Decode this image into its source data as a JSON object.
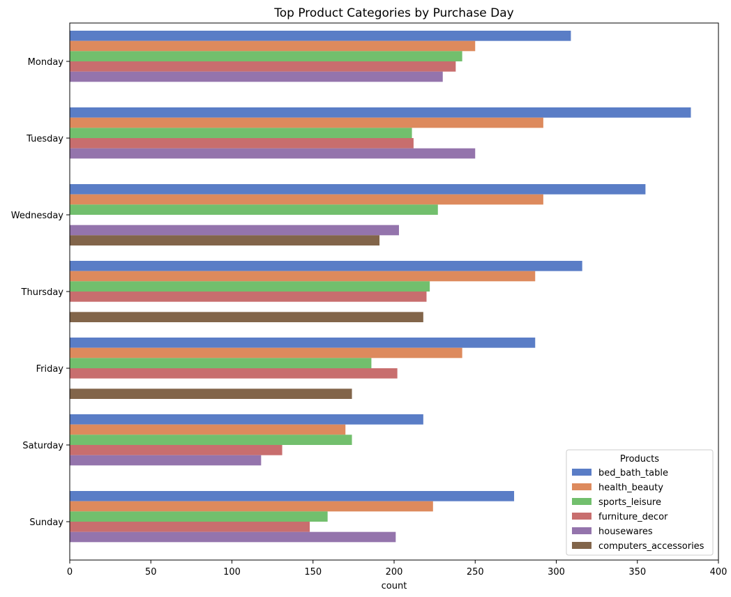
{
  "chart_data": {
    "type": "bar",
    "orientation": "horizontal",
    "title": "Top Product Categories by Purchase Day",
    "xlabel": "count",
    "ylabel": "",
    "xlim": [
      0,
      400
    ],
    "xticks": [
      "0",
      "50",
      "100",
      "150",
      "200",
      "250",
      "300",
      "350",
      "400"
    ],
    "grid": false,
    "categories": [
      "Monday",
      "Tuesday",
      "Wednesday",
      "Thursday",
      "Friday",
      "Saturday",
      "Sunday"
    ],
    "legend": {
      "title": "Products",
      "placement": "lower-right"
    },
    "series": [
      {
        "name": "bed_bath_table",
        "color": "#5a7dc6",
        "values": [
          309,
          383,
          355,
          316,
          287,
          218,
          274
        ]
      },
      {
        "name": "health_beauty",
        "color": "#dd8a5d",
        "values": [
          250,
          292,
          292,
          287,
          242,
          170,
          224
        ]
      },
      {
        "name": "sports_leisure",
        "color": "#72bf6d",
        "values": [
          242,
          211,
          227,
          222,
          186,
          174,
          159
        ]
      },
      {
        "name": "furniture_decor",
        "color": "#c86e6e",
        "values": [
          238,
          212,
          null,
          220,
          202,
          131,
          148
        ]
      },
      {
        "name": "housewares",
        "color": "#9474ac",
        "values": [
          230,
          250,
          203,
          null,
          null,
          118,
          201
        ]
      },
      {
        "name": "computers_accessories",
        "color": "#82654a",
        "values": [
          null,
          null,
          191,
          218,
          174,
          null,
          null
        ]
      }
    ]
  }
}
